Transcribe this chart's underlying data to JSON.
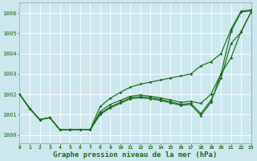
{
  "bg_color": "#cce8ee",
  "grid_color": "#b8d8de",
  "line_color": "#1a6b1a",
  "title": "Graphe pression niveau de la mer (hPa)",
  "xlim": [
    0,
    23
  ],
  "ylim": [
    999.6,
    1006.5
  ],
  "yticks": [
    1000,
    1001,
    1002,
    1003,
    1004,
    1005,
    1006
  ],
  "xticks": [
    0,
    1,
    2,
    3,
    4,
    5,
    6,
    7,
    8,
    9,
    10,
    11,
    12,
    13,
    14,
    15,
    16,
    17,
    18,
    19,
    20,
    21,
    22,
    23
  ],
  "series": [
    [
      1002.0,
      1001.3,
      1000.75,
      1000.85,
      1000.25,
      1000.25,
      1000.25,
      1000.25,
      1001.4,
      1001.8,
      1002.1,
      1002.35,
      1002.5,
      1002.6,
      1002.7,
      1002.8,
      1002.9,
      1003.0,
      1003.4,
      1003.6,
      1004.0,
      1005.2,
      1006.1,
      1006.15
    ],
    [
      1002.0,
      1001.3,
      1000.75,
      1000.85,
      1000.25,
      1000.25,
      1000.25,
      1000.25,
      1001.15,
      1001.5,
      1001.7,
      1001.9,
      1001.97,
      1001.9,
      1001.82,
      1001.72,
      1001.6,
      1001.65,
      1001.55,
      1002.0,
      1003.0,
      1005.1,
      1006.05,
      1006.1
    ],
    [
      1002.0,
      1001.3,
      1000.75,
      1000.85,
      1000.25,
      1000.25,
      1000.25,
      1000.25,
      1001.05,
      1001.38,
      1001.6,
      1001.83,
      1001.88,
      1001.83,
      1001.74,
      1001.63,
      1001.5,
      1001.55,
      1001.05,
      1001.7,
      1002.8,
      1004.5,
      1005.05,
      1006.08
    ],
    [
      1002.0,
      1001.3,
      1000.75,
      1000.85,
      1000.25,
      1000.25,
      1000.25,
      1000.25,
      1001.0,
      1001.33,
      1001.55,
      1001.78,
      1001.83,
      1001.78,
      1001.69,
      1001.58,
      1001.45,
      1001.5,
      1000.95,
      1001.6,
      1003.0,
      1003.8,
      1005.1,
      1006.05
    ]
  ]
}
